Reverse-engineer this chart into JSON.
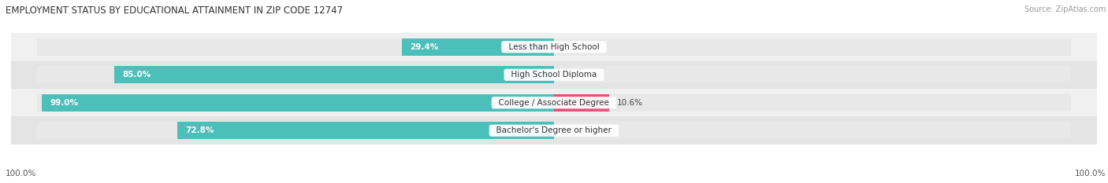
{
  "title": "EMPLOYMENT STATUS BY EDUCATIONAL ATTAINMENT IN ZIP CODE 12747",
  "source": "Source: ZipAtlas.com",
  "categories": [
    "Less than High School",
    "High School Diploma",
    "College / Associate Degree",
    "Bachelor's Degree or higher"
  ],
  "in_labor_force": [
    29.4,
    85.0,
    99.0,
    72.8
  ],
  "unemployed": [
    0.0,
    0.0,
    10.6,
    0.0
  ],
  "labor_force_color": "#4BBFBA",
  "unemployed_color_low": "#F4A0B8",
  "unemployed_color_high": "#E8507A",
  "bar_bg_color": "#E8E8E8",
  "row_bg_even": "#F0F0F0",
  "row_bg_odd": "#E4E4E4",
  "label_color_white": "#FFFFFF",
  "label_color_dark": "#444444",
  "axis_label_left": "100.0%",
  "axis_label_right": "100.0%",
  "max_value": 100.0,
  "bar_height": 0.62,
  "title_fontsize": 8.5,
  "source_fontsize": 7,
  "label_fontsize": 7.5,
  "category_fontsize": 7.5,
  "legend_fontsize": 7.5,
  "lf_label_threshold": 15.0
}
